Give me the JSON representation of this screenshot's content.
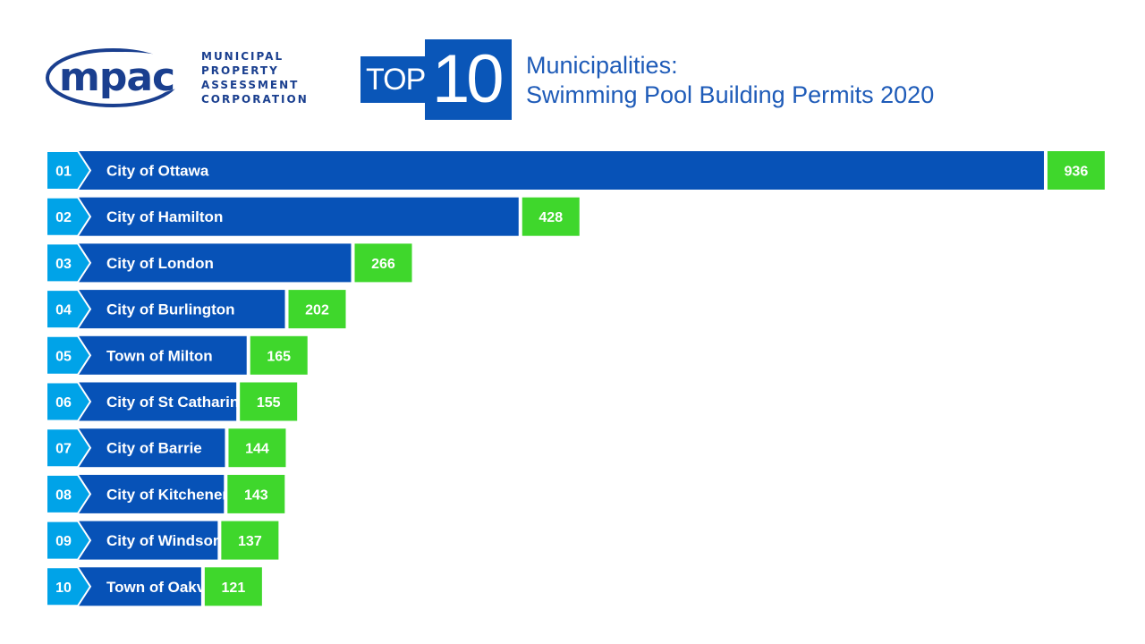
{
  "header": {
    "logo_text": "mpac",
    "logo_subtitle": [
      "MUNICIPAL",
      "PROPERTY",
      "ASSESSMENT",
      "CORPORATION"
    ],
    "badge_word": "TOP",
    "badge_number": "10",
    "title_line1": "Municipalities:",
    "title_line2": "Swimming Pool Building Permits 2020"
  },
  "colors": {
    "rank_tab": "#00a3e8",
    "bar": "#0752b7",
    "value_box": "#3fd72c",
    "title": "#1e5bb8",
    "logo": "#1a3f8f"
  },
  "chart_data": {
    "type": "bar",
    "orientation": "horizontal",
    "title": "Municipalities: Swimming Pool Building Permits 2020",
    "ranks": [
      "01",
      "02",
      "03",
      "04",
      "05",
      "06",
      "07",
      "08",
      "09",
      "10"
    ],
    "categories": [
      "City of Ottawa",
      "City of Hamilton",
      "City of London",
      "City of Burlington",
      "Town of Milton",
      "City of St Catharines",
      "City of Barrie",
      "City of Kitchener",
      "City of Windsor",
      "Town of Oakville"
    ],
    "values": [
      936,
      428,
      266,
      202,
      165,
      155,
      144,
      143,
      137,
      121
    ],
    "xlim": [
      0,
      936
    ],
    "grid": false,
    "legend": "none"
  }
}
